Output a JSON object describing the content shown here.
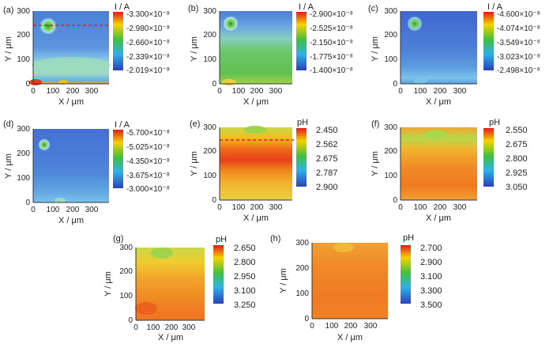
{
  "figure": {
    "description_free": true
  },
  "chart_data": [
    {
      "type": "heatmap",
      "panel_label": "(a)",
      "xlabel": "X / μm",
      "ylabel": "Y / μm",
      "x_ticks": [
        "0",
        "100",
        "200",
        "300"
      ],
      "y_ticks": [
        "0",
        "100",
        "200",
        "300"
      ],
      "xlim": [
        0,
        390
      ],
      "ylim": [
        0,
        300
      ],
      "colorbar_title": "I / A",
      "colorbar_labels": [
        "-3.300×10⁻⁸",
        "-2.980×10⁻⁸",
        "-2.660×10⁻⁸",
        "-2.339×10⁻⁸",
        "-2.019×10⁻⁸"
      ],
      "colorbar_range": [
        -3.3e-08,
        -2.019e-08
      ],
      "guide_line_y": 245,
      "hotspot": {
        "x": 60,
        "y": 250
      }
    },
    {
      "type": "heatmap",
      "panel_label": "(b)",
      "xlabel": "X / μm",
      "ylabel": "Y / μm",
      "x_ticks": [
        "0",
        "100",
        "200",
        "300"
      ],
      "y_ticks": [
        "0",
        "100",
        "200",
        "300"
      ],
      "xlim": [
        0,
        390
      ],
      "ylim": [
        0,
        300
      ],
      "colorbar_title": "I / A",
      "colorbar_labels": [
        "-2.900×10⁻⁸",
        "-2.525×10⁻⁸",
        "-2.150×10⁻⁸",
        "-1.775×10⁻⁸",
        "-1.400×10⁻⁸"
      ],
      "colorbar_range": [
        -2.9e-08,
        -1.4e-08
      ],
      "hotspot": {
        "x": 55,
        "y": 250
      }
    },
    {
      "type": "heatmap",
      "panel_label": "(c)",
      "xlabel": "X / μm",
      "ylabel": "Y / μm",
      "x_ticks": [
        "0",
        "100",
        "200",
        "300"
      ],
      "y_ticks": [
        "0",
        "100",
        "200",
        "300"
      ],
      "xlim": [
        0,
        390
      ],
      "ylim": [
        0,
        300
      ],
      "colorbar_title": "I / A",
      "colorbar_labels": [
        "-4.600×10⁻⁸",
        "-4.074×10⁻⁸",
        "-3.549×10⁻⁸",
        "-3.023×10⁻⁸",
        "-2.498×10⁻⁸"
      ],
      "colorbar_range": [
        -4.6e-08,
        -2.498e-08
      ],
      "hotspot": {
        "x": 60,
        "y": 250
      }
    },
    {
      "type": "heatmap",
      "panel_label": "(d)",
      "xlabel": "X / μm",
      "ylabel": "Y / μm",
      "x_ticks": [
        "0",
        "100",
        "200",
        "300"
      ],
      "y_ticks": [
        "0",
        "100",
        "200",
        "300"
      ],
      "xlim": [
        0,
        390
      ],
      "ylim": [
        0,
        300
      ],
      "colorbar_title": "I / A",
      "colorbar_labels": [
        "-5.700×10⁻⁸",
        "-5.025×10⁻⁸",
        "-4.350×10⁻⁸",
        "-3.675×10⁻⁸",
        "-3.000×10⁻⁸"
      ],
      "colorbar_range": [
        -5.7e-08,
        -3e-08
      ],
      "hotspot": {
        "x": 45,
        "y": 250
      }
    },
    {
      "type": "heatmap",
      "panel_label": "(e)",
      "xlabel": "X / μm",
      "ylabel": "Y / μm",
      "x_ticks": [
        "0",
        "100",
        "200",
        "300"
      ],
      "y_ticks": [
        "0",
        "100",
        "200",
        "300"
      ],
      "xlim": [
        0,
        390
      ],
      "ylim": [
        0,
        300
      ],
      "colorbar_title": "pH",
      "colorbar_labels": [
        "2.450",
        "2.562",
        "2.675",
        "2.787",
        "2.900"
      ],
      "colorbar_range": [
        2.45,
        2.9
      ],
      "guide_line_y": 245
    },
    {
      "type": "heatmap",
      "panel_label": "(f)",
      "xlabel": "X / μm",
      "ylabel": "Y / μm",
      "x_ticks": [
        "0",
        "100",
        "200",
        "300"
      ],
      "y_ticks": [
        "0",
        "100",
        "200",
        "300"
      ],
      "xlim": [
        0,
        390
      ],
      "ylim": [
        0,
        300
      ],
      "colorbar_title": "pH",
      "colorbar_labels": [
        "2.550",
        "2.675",
        "2.800",
        "2.925",
        "3.050"
      ],
      "colorbar_range": [
        2.55,
        3.05
      ]
    },
    {
      "type": "heatmap",
      "panel_label": "(g)",
      "xlabel": "X / μm",
      "ylabel": "Y / μm",
      "x_ticks": [
        "0",
        "100",
        "200",
        "300"
      ],
      "y_ticks": [
        "0",
        "100",
        "200",
        "300"
      ],
      "xlim": [
        0,
        390
      ],
      "ylim": [
        0,
        300
      ],
      "colorbar_title": "pH",
      "colorbar_labels": [
        "2.650",
        "2.800",
        "2.950",
        "3.100",
        "3.250"
      ],
      "colorbar_range": [
        2.65,
        3.25
      ]
    },
    {
      "type": "heatmap",
      "panel_label": "(h)",
      "xlabel": "X / μm",
      "ylabel": "Y / μm",
      "x_ticks": [
        "0",
        "100",
        "200",
        "300"
      ],
      "y_ticks": [
        "0",
        "100",
        "200",
        "300"
      ],
      "xlim": [
        0,
        390
      ],
      "ylim": [
        0,
        300
      ],
      "colorbar_title": "pH",
      "colorbar_labels": [
        "2.700",
        "2.900",
        "3.100",
        "3.300",
        "3.500"
      ],
      "colorbar_range": [
        2.7,
        3.5
      ]
    }
  ]
}
